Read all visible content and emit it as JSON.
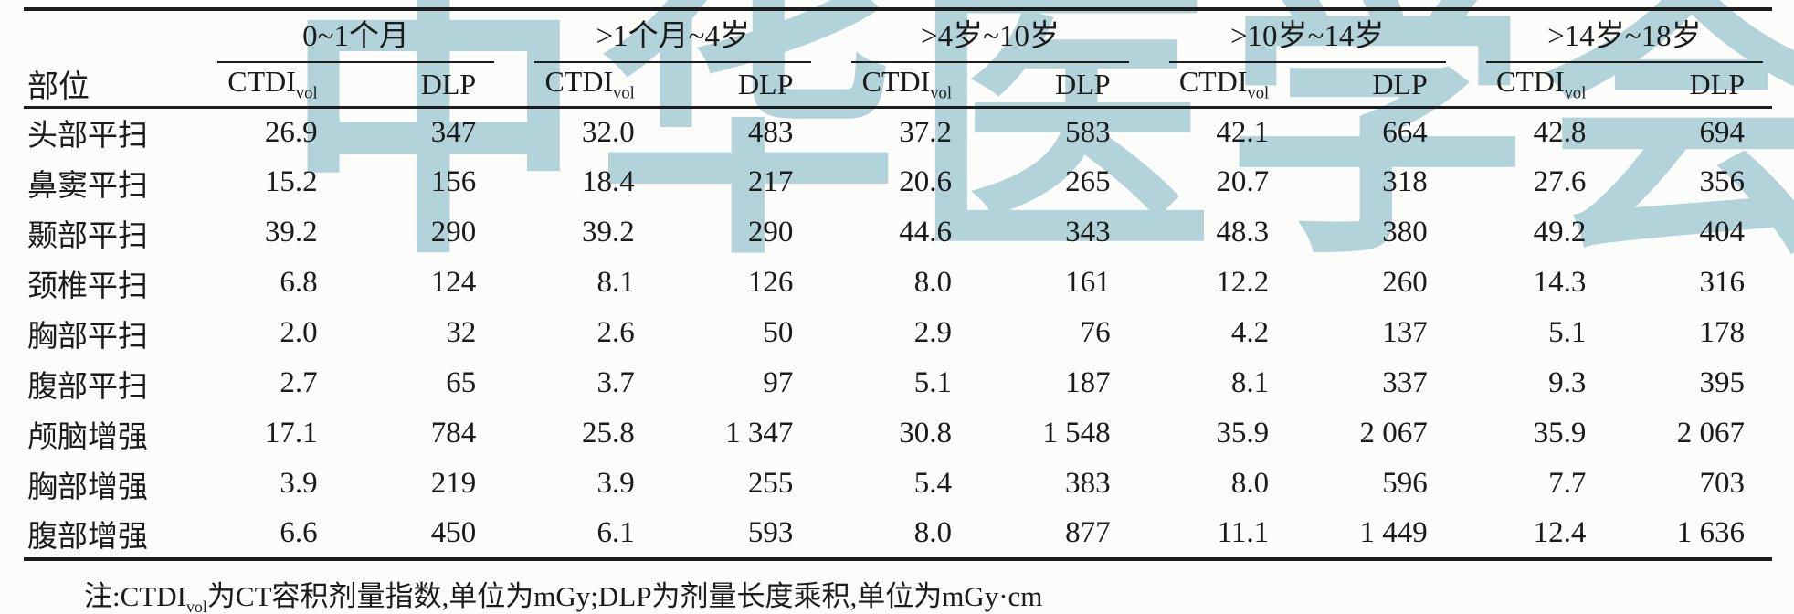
{
  "watermark": {
    "text": "中华医学会",
    "color": "#b2d3da"
  },
  "table": {
    "col0_header": "部位",
    "groups": [
      {
        "label": "0~1个月"
      },
      {
        "label": ">1个月~4岁"
      },
      {
        "label": ">4岁~10岁"
      },
      {
        "label": ">10岁~14岁"
      },
      {
        "label": ">14岁~18岁"
      }
    ],
    "sub_headers": {
      "ctdi_main": "CTDI",
      "ctdi_sub": "vol",
      "dlp": "DLP"
    },
    "rows": [
      {
        "label": "头部平扫",
        "values": [
          "26.9",
          "347",
          "32.0",
          "483",
          "37.2",
          "583",
          "42.1",
          "664",
          "42.8",
          "694"
        ]
      },
      {
        "label": "鼻窦平扫",
        "values": [
          "15.2",
          "156",
          "18.4",
          "217",
          "20.6",
          "265",
          "20.7",
          "318",
          "27.6",
          "356"
        ]
      },
      {
        "label": "颞部平扫",
        "values": [
          "39.2",
          "290",
          "39.2",
          "290",
          "44.6",
          "343",
          "48.3",
          "380",
          "49.2",
          "404"
        ]
      },
      {
        "label": "颈椎平扫",
        "values": [
          "6.8",
          "124",
          "8.1",
          "126",
          "8.0",
          "161",
          "12.2",
          "260",
          "14.3",
          "316"
        ]
      },
      {
        "label": "胸部平扫",
        "values": [
          "2.0",
          "32",
          "2.6",
          "50",
          "2.9",
          "76",
          "4.2",
          "137",
          "5.1",
          "178"
        ]
      },
      {
        "label": "腹部平扫",
        "values": [
          "2.7",
          "65",
          "3.7",
          "97",
          "5.1",
          "187",
          "8.1",
          "337",
          "9.3",
          "395"
        ]
      },
      {
        "label": "颅脑增强",
        "values": [
          "17.1",
          "784",
          "25.8",
          "1 347",
          "30.8",
          "1 548",
          "35.9",
          "2 067",
          "35.9",
          "2 067"
        ]
      },
      {
        "label": "胸部增强",
        "values": [
          "3.9",
          "219",
          "3.9",
          "255",
          "5.4",
          "383",
          "8.0",
          "596",
          "7.7",
          "703"
        ]
      },
      {
        "label": "腹部增强",
        "values": [
          "6.6",
          "450",
          "6.1",
          "593",
          "8.0",
          "877",
          "11.1",
          "1 449",
          "12.4",
          "1 636"
        ]
      }
    ],
    "note_prefix": "注:CTDI",
    "note_sub": "vol",
    "note_suffix": "为CT容积剂量指数,单位为mGy;DLP为剂量长度乘积,单位为mGy·cm"
  },
  "chart_data": {
    "type": "table",
    "title": "",
    "row_header": "部位",
    "column_groups": [
      "0~1个月",
      ">1个月~4岁",
      ">4岁~10岁",
      ">10岁~14岁",
      ">14岁~18岁"
    ],
    "sub_columns": [
      "CTDIvol",
      "DLP"
    ],
    "units": {
      "CTDIvol": "mGy",
      "DLP": "mGy·cm"
    },
    "rows": [
      {
        "part": "头部平扫",
        "values": [
          26.9,
          347,
          32.0,
          483,
          37.2,
          583,
          42.1,
          664,
          42.8,
          694
        ]
      },
      {
        "part": "鼻窦平扫",
        "values": [
          15.2,
          156,
          18.4,
          217,
          20.6,
          265,
          20.7,
          318,
          27.6,
          356
        ]
      },
      {
        "part": "颞部平扫",
        "values": [
          39.2,
          290,
          39.2,
          290,
          44.6,
          343,
          48.3,
          380,
          49.2,
          404
        ]
      },
      {
        "part": "颈椎平扫",
        "values": [
          6.8,
          124,
          8.1,
          126,
          8.0,
          161,
          12.2,
          260,
          14.3,
          316
        ]
      },
      {
        "part": "胸部平扫",
        "values": [
          2.0,
          32,
          2.6,
          50,
          2.9,
          76,
          4.2,
          137,
          5.1,
          178
        ]
      },
      {
        "part": "腹部平扫",
        "values": [
          2.7,
          65,
          3.7,
          97,
          5.1,
          187,
          8.1,
          337,
          9.3,
          395
        ]
      },
      {
        "part": "颅脑增强",
        "values": [
          17.1,
          784,
          25.8,
          1347,
          30.8,
          1548,
          35.9,
          2067,
          35.9,
          2067
        ]
      },
      {
        "part": "胸部增强",
        "values": [
          3.9,
          219,
          3.9,
          255,
          5.4,
          383,
          8.0,
          596,
          7.7,
          703
        ]
      },
      {
        "part": "腹部增强",
        "values": [
          6.6,
          450,
          6.1,
          593,
          8.0,
          877,
          11.1,
          1449,
          12.4,
          1636
        ]
      }
    ]
  }
}
